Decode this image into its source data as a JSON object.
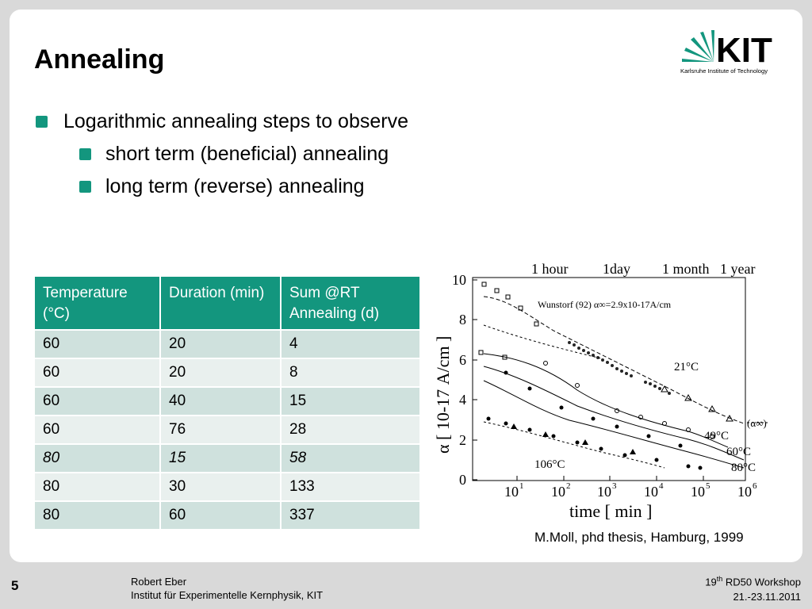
{
  "title": "Annealing",
  "logo": {
    "text": "KIT",
    "subtitle": "Karlsruhe Institute of Technology"
  },
  "bullets": [
    {
      "level": 1,
      "text": "Logarithmic annealing steps to observe"
    },
    {
      "level": 2,
      "text": "short term (beneficial) annealing"
    },
    {
      "level": 2,
      "text": "long term (reverse) annealing"
    }
  ],
  "table": {
    "headers": [
      "Temperature (°C)",
      "Duration (min)",
      "Sum @RT Annealing (d)"
    ],
    "rows": [
      [
        "60",
        "20",
        "4"
      ],
      [
        "60",
        "20",
        "8"
      ],
      [
        "60",
        "40",
        "15"
      ],
      [
        "60",
        "76",
        "28"
      ],
      [
        "80",
        "15",
        "58"
      ],
      [
        "80",
        "30",
        "133"
      ],
      [
        "80",
        "60",
        "337"
      ]
    ]
  },
  "figure": {
    "top_labels": [
      "1 hour",
      "1day",
      "1 month",
      "1 year"
    ],
    "annotation": "Wunstorf (92) α∞=2.9x10-17A/cm",
    "alpha_inf": "(α∞)",
    "y_axis_label": "α  [ 10-17 A/cm ]",
    "x_axis_label": "time  [ min ]",
    "y_ticks": [
      "0",
      "2",
      "4",
      "6",
      "8",
      "10"
    ],
    "x_ticks": [
      "10",
      "10",
      "10",
      "10",
      "10",
      "10"
    ],
    "x_tick_exponents": [
      "1",
      "2",
      "3",
      "4",
      "5",
      "6"
    ],
    "curve_labels": [
      "21°C",
      "49°C",
      "60°C",
      "80°C",
      "106°C"
    ]
  },
  "caption": "M.Moll, phd thesis, Hamburg, 1999",
  "footer": {
    "page_number": "5",
    "author": "Robert Eber",
    "institute": "Institut für Experimentelle Kernphysik, KIT",
    "workshop_prefix": "19",
    "workshop_sup": "th",
    "workshop_rest": " RD50 Workshop",
    "dates": "21.-23.11.2011"
  },
  "colors": {
    "accent": "#13967e",
    "row_odd": "#cfe1dd",
    "row_even": "#e9f0ee"
  }
}
